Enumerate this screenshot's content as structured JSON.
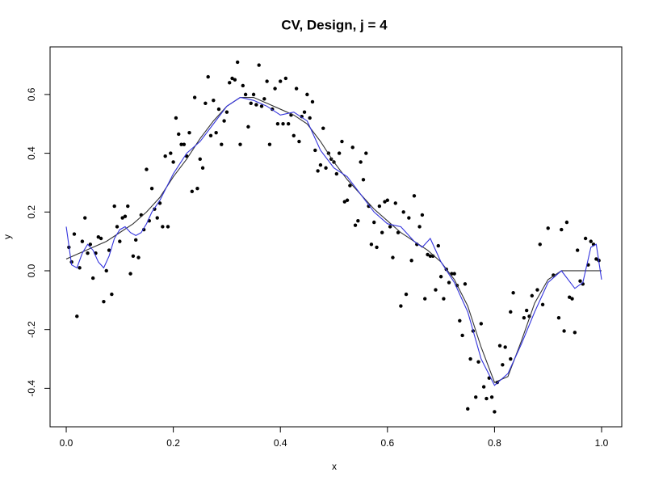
{
  "chart_data": {
    "type": "scatter",
    "title": "CV, Design, j = 4",
    "x_label": "x",
    "y_label": "y",
    "xlim": [
      -0.0302,
      1.0377
    ],
    "ylim": [
      -0.531,
      0.762
    ],
    "xticks": [
      {
        "value": 0,
        "label": "0.0"
      },
      0.2,
      0.4,
      0.6,
      0.8,
      {
        "value": 1,
        "label": "1.0"
      }
    ],
    "yticks": [
      -0.4,
      -0.2,
      {
        "value": 0,
        "label": "0.0"
      },
      0.2,
      0.4,
      0.6
    ],
    "points": {
      "color": "#000000",
      "x": [
        0.005,
        0.01,
        0.015,
        0.02,
        0.025,
        0.03,
        0.035,
        0.04,
        0.045,
        0.05,
        0.055,
        0.06,
        0.065,
        0.07,
        0.075,
        0.08,
        0.085,
        0.09,
        0.095,
        0.1,
        0.105,
        0.11,
        0.115,
        0.12,
        0.125,
        0.13,
        0.135,
        0.14,
        0.145,
        0.15,
        0.155,
        0.16,
        0.165,
        0.17,
        0.175,
        0.18,
        0.185,
        0.19,
        0.195,
        0.2,
        0.205,
        0.21,
        0.215,
        0.22,
        0.225,
        0.23,
        0.235,
        0.24,
        0.245,
        0.25,
        0.255,
        0.26,
        0.265,
        0.27,
        0.275,
        0.28,
        0.285,
        0.29,
        0.295,
        0.3,
        0.305,
        0.31,
        0.315,
        0.32,
        0.325,
        0.33,
        0.335,
        0.34,
        0.345,
        0.35,
        0.355,
        0.36,
        0.365,
        0.37,
        0.375,
        0.38,
        0.385,
        0.39,
        0.395,
        0.4,
        0.405,
        0.41,
        0.415,
        0.42,
        0.425,
        0.43,
        0.435,
        0.44,
        0.445,
        0.45,
        0.455,
        0.46,
        0.465,
        0.47,
        0.475,
        0.48,
        0.485,
        0.49,
        0.495,
        0.5,
        0.505,
        0.51,
        0.515,
        0.52,
        0.525,
        0.53,
        0.535,
        0.54,
        0.545,
        0.55,
        0.555,
        0.56,
        0.565,
        0.57,
        0.575,
        0.58,
        0.585,
        0.59,
        0.595,
        0.6,
        0.605,
        0.61,
        0.615,
        0.62,
        0.625,
        0.63,
        0.635,
        0.64,
        0.645,
        0.65,
        0.655,
        0.66,
        0.665,
        0.67,
        0.675,
        0.68,
        0.685,
        0.69,
        0.695,
        0.7,
        0.705,
        0.71,
        0.715,
        0.72,
        0.725,
        0.73,
        0.735,
        0.74,
        0.745,
        0.75,
        0.755,
        0.76,
        0.765,
        0.77,
        0.775,
        0.78,
        0.785,
        0.79,
        0.795,
        0.8,
        0.805,
        0.81,
        0.815,
        0.82,
        0.83,
        0.83,
        0.835,
        0.855,
        0.86,
        0.865,
        0.87,
        0.885,
        0.88,
        0.9,
        0.89,
        0.91,
        0.92,
        0.925,
        0.93,
        0.935,
        0.94,
        0.945,
        0.95,
        0.955,
        0.96,
        0.965,
        0.97,
        0.975,
        0.98,
        0.985,
        0.99,
        0.995
      ],
      "values": [
        0.08,
        0.03,
        0.125,
        -0.155,
        0.01,
        0.1,
        0.18,
        0.06,
        0.09,
        -0.025,
        0.06,
        0.115,
        0.11,
        -0.105,
        0.0,
        0.07,
        -0.08,
        0.22,
        0.15,
        0.1,
        0.18,
        0.185,
        0.22,
        -0.01,
        0.05,
        0.105,
        0.045,
        0.19,
        0.14,
        0.345,
        0.17,
        0.28,
        0.21,
        0.18,
        0.23,
        0.15,
        0.39,
        0.15,
        0.4,
        0.37,
        0.52,
        0.465,
        0.43,
        0.43,
        0.39,
        0.47,
        0.27,
        0.59,
        0.28,
        0.38,
        0.35,
        0.57,
        0.66,
        0.46,
        0.58,
        0.47,
        0.55,
        0.43,
        0.51,
        0.54,
        0.64,
        0.655,
        0.65,
        0.71,
        0.43,
        0.63,
        0.6,
        0.49,
        0.57,
        0.6,
        0.565,
        0.7,
        0.56,
        0.585,
        0.645,
        0.43,
        0.55,
        0.62,
        0.5,
        0.645,
        0.5,
        0.655,
        0.5,
        0.53,
        0.46,
        0.62,
        0.44,
        0.525,
        0.54,
        0.6,
        0.52,
        0.575,
        0.41,
        0.34,
        0.36,
        0.485,
        0.35,
        0.4,
        0.38,
        0.37,
        0.33,
        0.4,
        0.44,
        0.235,
        0.24,
        0.29,
        0.42,
        0.155,
        0.17,
        0.37,
        0.31,
        0.4,
        0.22,
        0.09,
        0.165,
        0.08,
        0.22,
        0.13,
        0.235,
        0.24,
        0.15,
        0.045,
        0.23,
        0.13,
        -0.12,
        0.2,
        -0.08,
        0.18,
        0.035,
        0.255,
        0.09,
        0.15,
        0.19,
        -0.095,
        0.055,
        0.05,
        0.05,
        -0.065,
        0.085,
        -0.02,
        -0.095,
        0.005,
        -0.04,
        -0.01,
        -0.01,
        -0.05,
        -0.17,
        -0.22,
        -0.045,
        -0.47,
        -0.3,
        -0.205,
        -0.43,
        -0.31,
        -0.18,
        -0.395,
        -0.435,
        -0.365,
        -0.43,
        -0.48,
        -0.38,
        -0.255,
        -0.32,
        -0.26,
        -0.14,
        -0.3,
        -0.075,
        -0.16,
        -0.135,
        -0.155,
        -0.085,
        0.09,
        -0.065,
        0.145,
        -0.115,
        -0.015,
        -0.16,
        0.14,
        -0.205,
        0.165,
        -0.09,
        -0.095,
        -0.21,
        0.07,
        -0.035,
        -0.045,
        0.11,
        0.02,
        0.1,
        0.09,
        0.04,
        0.035
      ]
    },
    "series": [
      {
        "color": "#333333",
        "x": [
          0,
          0.025,
          0.05,
          0.075,
          0.1,
          0.125,
          0.15,
          0.175,
          0.2,
          0.225,
          0.25,
          0.275,
          0.3,
          0.325,
          0.35,
          0.375,
          0.4,
          0.425,
          0.45,
          0.475,
          0.5,
          0.525,
          0.55,
          0.575,
          0.6,
          0.625,
          0.65,
          0.675,
          0.7,
          0.725,
          0.75,
          0.775,
          0.8,
          0.825,
          0.85,
          0.875,
          0.9,
          0.925,
          0.95,
          0.975,
          1
        ],
        "values": [
          0.04,
          0.06,
          0.08,
          0.1,
          0.13,
          0.16,
          0.2,
          0.25,
          0.32,
          0.38,
          0.45,
          0.51,
          0.56,
          0.59,
          0.59,
          0.57,
          0.55,
          0.53,
          0.5,
          0.44,
          0.37,
          0.31,
          0.26,
          0.21,
          0.17,
          0.13,
          0.1,
          0.07,
          0.03,
          -0.03,
          -0.12,
          -0.26,
          -0.38,
          -0.36,
          -0.24,
          -0.11,
          -0.03,
          0.0,
          0.0,
          0.0,
          0.0
        ]
      },
      {
        "color": "#3333dd",
        "x": [
          0,
          0.01,
          0.02,
          0.03,
          0.04,
          0.05,
          0.06,
          0.07,
          0.08,
          0.09,
          0.1,
          0.11,
          0.12,
          0.13,
          0.14,
          0.15,
          0.16,
          0.175,
          0.2,
          0.225,
          0.25,
          0.275,
          0.3,
          0.325,
          0.35,
          0.375,
          0.4,
          0.425,
          0.45,
          0.475,
          0.5,
          0.525,
          0.55,
          0.575,
          0.6,
          0.625,
          0.65,
          0.665,
          0.68,
          0.7,
          0.725,
          0.75,
          0.775,
          0.8,
          0.825,
          0.85,
          0.875,
          0.9,
          0.925,
          0.95,
          0.965,
          0.98,
          0.99,
          1
        ],
        "values": [
          0.15,
          0.02,
          0.01,
          0.06,
          0.09,
          0.07,
          0.03,
          0.01,
          0.05,
          0.11,
          0.14,
          0.15,
          0.13,
          0.12,
          0.13,
          0.16,
          0.2,
          0.24,
          0.33,
          0.4,
          0.44,
          0.5,
          0.56,
          0.59,
          0.58,
          0.56,
          0.53,
          0.54,
          0.51,
          0.41,
          0.35,
          0.32,
          0.26,
          0.2,
          0.16,
          0.15,
          0.1,
          0.08,
          0.11,
          0.03,
          -0.04,
          -0.14,
          -0.3,
          -0.39,
          -0.35,
          -0.25,
          -0.14,
          -0.04,
          0.0,
          -0.06,
          -0.04,
          0.08,
          0.09,
          -0.03
        ]
      }
    ]
  }
}
